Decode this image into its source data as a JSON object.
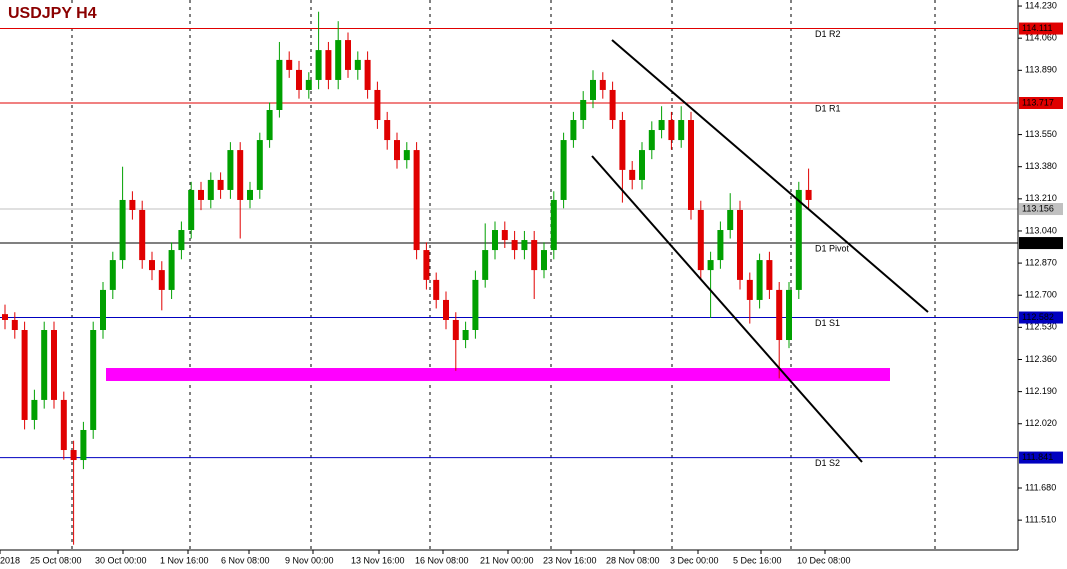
{
  "chart_data": {
    "type": "candlestick",
    "title": "USDJPY H4",
    "up_color": "#00a000",
    "down_color": "#e00000",
    "ylim": [
      111.352,
      114.262
    ],
    "yticks": [
      {
        "value": 114.23,
        "label": "114.230"
      },
      {
        "value": 114.06,
        "label": "114.060"
      },
      {
        "value": 113.89,
        "label": "113.890"
      },
      {
        "value": 113.55,
        "label": "113.550"
      },
      {
        "value": 113.38,
        "label": "113.380"
      },
      {
        "value": 113.21,
        "label": "113.210"
      },
      {
        "value": 113.04,
        "label": "113.040"
      },
      {
        "value": 112.87,
        "label": "112.870"
      },
      {
        "value": 112.7,
        "label": "112.700"
      },
      {
        "value": 112.53,
        "label": "112.530"
      },
      {
        "value": 112.36,
        "label": "112.360"
      },
      {
        "value": 112.19,
        "label": "112.190"
      },
      {
        "value": 112.02,
        "label": "112.020"
      },
      {
        "value": 111.68,
        "label": "111.680"
      },
      {
        "value": 111.51,
        "label": "111.510"
      }
    ],
    "x_labels": [
      "2018",
      "25 Oct 08:00",
      "30 Oct 00:00",
      "1 Nov 16:00",
      "6 Nov 08:00",
      "9 Nov 00:00",
      "13 Nov 16:00",
      "16 Nov 08:00",
      "21 Nov 00:00",
      "23 Nov 16:00",
      "28 Nov 08:00",
      "3 Dec 00:00",
      "5 Dec 16:00",
      "10 Dec 08:00"
    ],
    "levels": [
      {
        "name": "D1 R2",
        "value": 114.111,
        "color": "#e00000"
      },
      {
        "name": "D1 R1",
        "value": 113.717,
        "color": "#e00000"
      },
      {
        "name": "D1 Pivot",
        "value": 112.976,
        "color": "#000000"
      },
      {
        "name": "D1 S1",
        "value": 112.582,
        "color": "#0000c0"
      },
      {
        "name": "D1 S2",
        "value": 111.841,
        "color": "#0000c0"
      }
    ],
    "current_price": 113.156,
    "candles": [
      [
        112.6,
        112.65,
        112.52,
        112.569
      ],
      [
        112.569,
        112.61,
        112.47,
        112.516
      ],
      [
        112.516,
        112.56,
        111.99,
        112.04
      ],
      [
        112.04,
        112.2,
        111.99,
        112.146
      ],
      [
        112.146,
        112.56,
        112.1,
        112.516
      ],
      [
        112.516,
        112.56,
        112.1,
        112.146
      ],
      [
        112.146,
        112.19,
        111.83,
        111.881
      ],
      [
        111.881,
        111.93,
        111.38,
        111.828
      ],
      [
        111.828,
        112.03,
        111.78,
        111.987
      ],
      [
        111.987,
        112.56,
        111.94,
        112.516
      ],
      [
        112.516,
        112.77,
        112.47,
        112.728
      ],
      [
        112.728,
        112.93,
        112.68,
        112.886
      ],
      [
        112.886,
        113.38,
        112.84,
        113.204
      ],
      [
        113.204,
        113.25,
        113.1,
        113.151
      ],
      [
        113.151,
        113.2,
        112.84,
        112.886
      ],
      [
        112.886,
        112.93,
        112.78,
        112.833
      ],
      [
        112.833,
        112.88,
        112.62,
        112.728
      ],
      [
        112.728,
        112.98,
        112.68,
        112.939
      ],
      [
        112.939,
        113.09,
        112.89,
        113.045
      ],
      [
        113.045,
        113.3,
        113.0,
        113.257
      ],
      [
        113.257,
        113.3,
        113.15,
        113.204
      ],
      [
        113.204,
        113.35,
        113.16,
        113.31
      ],
      [
        113.31,
        113.35,
        113.21,
        113.257
      ],
      [
        113.257,
        113.51,
        113.21,
        113.468
      ],
      [
        113.468,
        113.51,
        113.0,
        113.204
      ],
      [
        113.204,
        113.3,
        113.16,
        113.257
      ],
      [
        113.257,
        113.56,
        113.21,
        113.521
      ],
      [
        113.521,
        113.72,
        113.48,
        113.68
      ],
      [
        113.68,
        114.04,
        113.64,
        113.945
      ],
      [
        113.945,
        113.99,
        113.85,
        113.892
      ],
      [
        113.892,
        113.94,
        113.74,
        113.786
      ],
      [
        113.786,
        113.88,
        113.74,
        113.839
      ],
      [
        113.839,
        114.2,
        113.79,
        113.997
      ],
      [
        113.997,
        114.04,
        113.79,
        113.839
      ],
      [
        113.839,
        114.15,
        113.79,
        114.05
      ],
      [
        114.05,
        114.09,
        113.85,
        113.892
      ],
      [
        113.892,
        113.99,
        113.84,
        113.945
      ],
      [
        113.945,
        113.99,
        113.74,
        113.786
      ],
      [
        113.786,
        113.83,
        113.58,
        113.627
      ],
      [
        113.627,
        113.67,
        113.47,
        113.521
      ],
      [
        113.521,
        113.56,
        113.37,
        113.415
      ],
      [
        113.415,
        113.51,
        113.37,
        113.468
      ],
      [
        113.468,
        113.51,
        112.89,
        112.939
      ],
      [
        112.939,
        112.98,
        112.73,
        112.781
      ],
      [
        112.781,
        112.82,
        112.63,
        112.675
      ],
      [
        112.675,
        112.72,
        112.52,
        112.569
      ],
      [
        112.569,
        112.61,
        112.3,
        112.463
      ],
      [
        112.463,
        112.56,
        112.42,
        112.516
      ],
      [
        112.516,
        112.83,
        112.47,
        112.781
      ],
      [
        112.781,
        113.08,
        112.74,
        112.939
      ],
      [
        112.939,
        113.09,
        112.89,
        113.045
      ],
      [
        113.045,
        113.09,
        112.95,
        112.992
      ],
      [
        112.992,
        113.04,
        112.89,
        112.939
      ],
      [
        112.939,
        113.04,
        112.89,
        112.992
      ],
      [
        112.992,
        113.04,
        112.68,
        112.833
      ],
      [
        112.833,
        112.98,
        112.79,
        112.939
      ],
      [
        112.939,
        113.25,
        112.89,
        113.204
      ],
      [
        113.204,
        113.56,
        113.16,
        113.521
      ],
      [
        113.521,
        113.67,
        113.48,
        113.627
      ],
      [
        113.627,
        113.78,
        113.58,
        113.733
      ],
      [
        113.733,
        113.89,
        113.69,
        113.839
      ],
      [
        113.839,
        113.88,
        113.74,
        113.786
      ],
      [
        113.786,
        113.83,
        113.58,
        113.627
      ],
      [
        113.627,
        113.67,
        113.19,
        113.363
      ],
      [
        113.363,
        113.41,
        113.26,
        113.31
      ],
      [
        113.31,
        113.51,
        113.26,
        113.468
      ],
      [
        113.468,
        113.62,
        113.42,
        113.574
      ],
      [
        113.574,
        113.7,
        113.53,
        113.627
      ],
      [
        113.627,
        113.67,
        113.47,
        113.521
      ],
      [
        113.521,
        113.7,
        113.48,
        113.627
      ],
      [
        113.627,
        113.67,
        113.1,
        113.151
      ],
      [
        113.151,
        113.2,
        112.78,
        112.833
      ],
      [
        112.833,
        112.93,
        112.58,
        112.886
      ],
      [
        112.886,
        113.09,
        112.84,
        113.045
      ],
      [
        113.045,
        113.24,
        113.0,
        113.151
      ],
      [
        113.151,
        113.2,
        112.73,
        112.781
      ],
      [
        112.781,
        112.82,
        112.55,
        112.675
      ],
      [
        112.675,
        112.92,
        112.63,
        112.886
      ],
      [
        112.886,
        112.93,
        112.68,
        112.728
      ],
      [
        112.728,
        112.77,
        112.26,
        112.463
      ],
      [
        112.463,
        112.77,
        112.42,
        112.728
      ],
      [
        112.728,
        113.3,
        112.68,
        113.257
      ],
      [
        113.257,
        113.37,
        113.16,
        113.204
      ]
    ]
  }
}
